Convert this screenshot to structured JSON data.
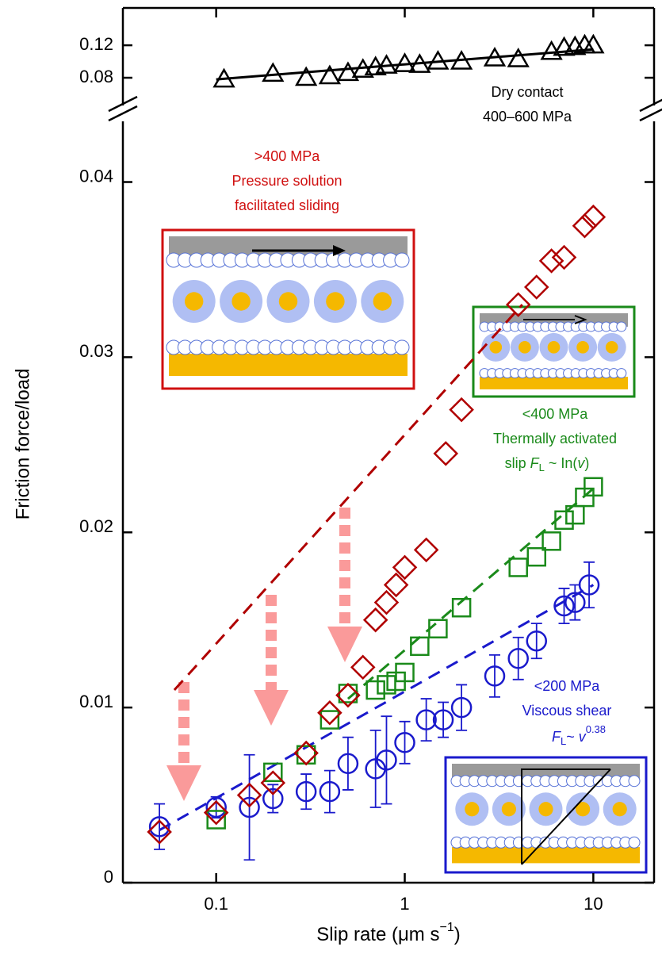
{
  "chart_data": {
    "type": "scatter",
    "x_label": [
      "Slip rate (μm s",
      "−1",
      ")"
    ],
    "y_label": "Friction force/load",
    "xlog": true,
    "xlim": [
      0.032,
      21
    ],
    "xticks": [
      0.1,
      1,
      10
    ],
    "ylim": [
      0,
      0.0436
    ],
    "yticks": [
      0,
      0.01,
      0.02,
      0.03,
      0.04
    ],
    "y2lim": [
      0.039,
      0.166
    ],
    "y2ticks": [
      0.08,
      0.12
    ],
    "annotations": {
      "dry": [
        "Dry contact",
        "400–600 MPa"
      ],
      "pressure": [
        ">400 MPa",
        "Pressure solution",
        "facilitated sliding"
      ],
      "thermal": [
        "<400 MPa",
        "Thermally activated"
      ],
      "thermal_formula": [
        "slip ",
        "F",
        "L",
        " ~ In(",
        "v",
        ")"
      ],
      "viscous": [
        "<200 MPa",
        "Viscous shear"
      ],
      "viscous_formula": [
        "F",
        "L",
        "~ ",
        "v",
        "0.38"
      ]
    },
    "series": [
      {
        "color": "#000000",
        "style": "solid",
        "axis": "y2",
        "x": [
          0.1,
          10
        ],
        "values": [
          0.078,
          0.115
        ]
      },
      {
        "color": "#b00000",
        "style": "dashed",
        "x": [
          0.06,
          4.2
        ],
        "values": [
          0.011,
          0.033
        ]
      },
      {
        "color": "#1a8a1a",
        "style": "dashed",
        "x": [
          0.5,
          10
        ],
        "values": [
          0.0105,
          0.0225
        ]
      },
      {
        "color": "#1a1acc",
        "style": "dashed",
        "x": [
          0.05,
          10
        ],
        "values": [
          0.003,
          0.017
        ]
      },
      {
        "color": "#000000",
        "marker": "triangle",
        "axis": "y2",
        "x": [
          0.11,
          0.2,
          0.3,
          0.4,
          0.5,
          0.6,
          0.7,
          0.8,
          1.0,
          1.2,
          1.5,
          2.0,
          3.0,
          4.0,
          6.0,
          7.0,
          8.0,
          9.0,
          10.0
        ],
        "values": [
          0.078,
          0.085,
          0.08,
          0.082,
          0.086,
          0.09,
          0.093,
          0.095,
          0.097,
          0.096,
          0.1,
          0.1,
          0.104,
          0.103,
          0.112,
          0.117,
          0.118,
          0.12,
          0.12
        ]
      },
      {
        "color": "#1a1acc",
        "marker": "circle",
        "x": [
          0.05,
          0.1,
          0.15,
          0.2,
          0.3,
          0.4,
          0.5,
          0.7,
          0.8,
          1.0,
          1.3,
          1.6,
          2.0,
          3.0,
          4.0,
          5.0,
          7.0,
          8.0,
          9.5
        ],
        "values": [
          0.0032,
          0.0043,
          0.0043,
          0.0048,
          0.0052,
          0.0052,
          0.0068,
          0.0065,
          0.007,
          0.008,
          0.0093,
          0.0093,
          0.01,
          0.0118,
          0.0128,
          0.0138,
          0.0158,
          0.016,
          0.017
        ],
        "errors": [
          0.0013,
          0.0006,
          0.003,
          0.0008,
          0.001,
          0.0012,
          0.0015,
          0.0022,
          0.0025,
          0.0012,
          0.0012,
          0.001,
          0.0013,
          0.0012,
          0.0012,
          0.001,
          0.001,
          0.001,
          0.0013
        ]
      },
      {
        "color": "#1a8a1a",
        "marker": "square",
        "x": [
          0.1,
          0.2,
          0.3,
          0.4,
          0.5,
          0.7,
          0.8,
          0.9,
          1.0,
          1.2,
          1.5,
          2.0,
          4.0,
          5.0,
          6.0,
          7.0,
          8.0,
          9.0,
          10.0
        ],
        "values": [
          0.0036,
          0.0063,
          0.0073,
          0.0093,
          0.0108,
          0.011,
          0.0113,
          0.0115,
          0.012,
          0.0135,
          0.0145,
          0.0157,
          0.018,
          0.0186,
          0.0195,
          0.0207,
          0.021,
          0.022,
          0.0226
        ]
      },
      {
        "color": "#b00000",
        "marker": "diamond",
        "x": [
          0.05,
          0.1,
          0.15,
          0.2,
          0.3,
          0.4,
          0.5,
          0.6,
          0.7,
          0.8,
          0.9,
          1.0,
          1.3,
          1.65,
          2.0,
          4.0,
          5.0,
          6.0,
          7.0,
          9.0,
          10.0
        ],
        "values": [
          0.0029,
          0.004,
          0.005,
          0.0057,
          0.0074,
          0.0097,
          0.0107,
          0.0123,
          0.015,
          0.016,
          0.017,
          0.018,
          0.019,
          0.0245,
          0.027,
          0.033,
          0.034,
          0.0355,
          0.0357,
          0.0375,
          0.038
        ]
      }
    ]
  }
}
